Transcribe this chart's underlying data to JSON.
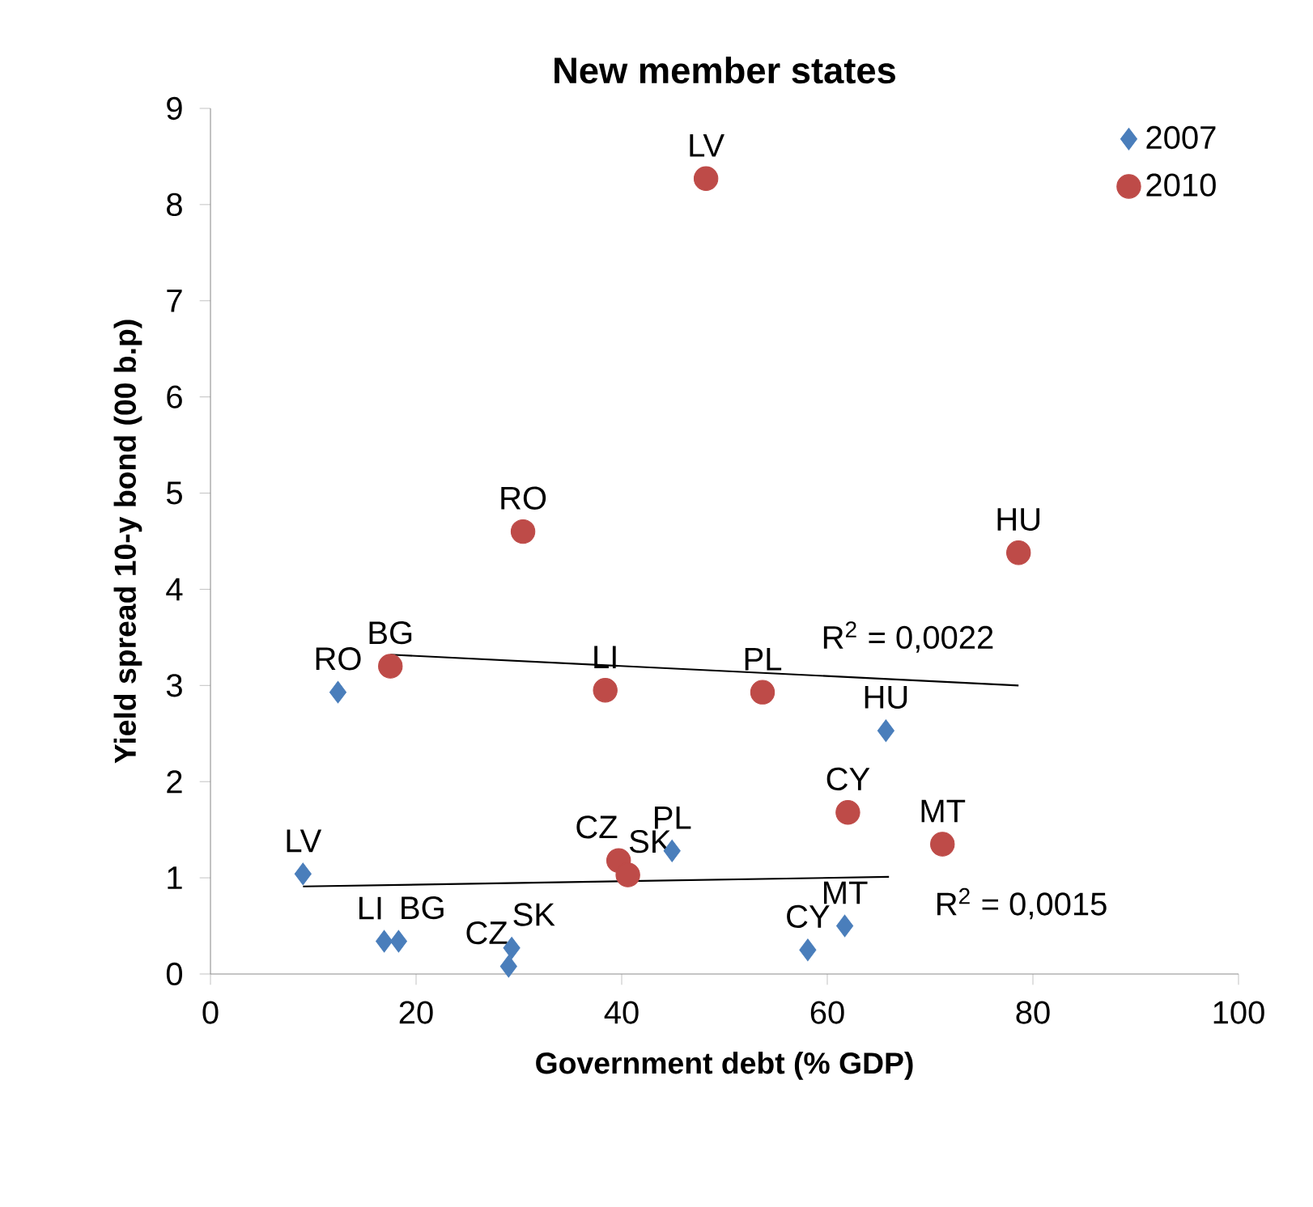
{
  "chart_data": {
    "type": "scatter",
    "title": "New member states",
    "xlabel": "Government debt (% GDP)",
    "ylabel": "Yield spread 10-y bond (00 b.p)",
    "xlim": [
      0,
      100
    ],
    "xticks": [
      0,
      20,
      40,
      60,
      80,
      100
    ],
    "ylim": [
      0,
      9
    ],
    "yticks": [
      0,
      1,
      2,
      3,
      4,
      5,
      6,
      7,
      8,
      9
    ],
    "grid": false,
    "legend": "top right",
    "series": [
      {
        "name": "2007",
        "marker": "diamond",
        "color": "#4a7ebb",
        "x": [
          9.0,
          12.4,
          16.9,
          18.3,
          29.3,
          29.0,
          44.9,
          58.1,
          61.7,
          65.7
        ],
        "values": [
          1.04,
          2.93,
          0.34,
          0.34,
          0.27,
          0.08,
          1.28,
          0.25,
          0.5,
          2.53
        ]
      },
      {
        "name": "2010",
        "marker": "circle",
        "color": "#be4b48",
        "x": [
          48.2,
          30.4,
          17.5,
          38.4,
          53.7,
          78.6,
          62.0,
          71.2,
          39.7,
          40.6
        ],
        "values": [
          8.27,
          4.6,
          3.2,
          2.95,
          2.93,
          4.38,
          1.68,
          1.35,
          1.18,
          1.03
        ]
      },
      {
        "type": "line",
        "color": "#000000",
        "x": [
          9.0,
          66.0
        ],
        "values": [
          0.91,
          1.01
        ]
      },
      {
        "type": "line",
        "color": "#000000",
        "x": [
          17.5,
          78.6
        ],
        "values": [
          3.32,
          3.0
        ]
      }
    ],
    "annotations": [
      {
        "text": "LV",
        "x": 9.0,
        "y": 1.04
      },
      {
        "text": "RO",
        "x": 12.4,
        "y": 2.93
      },
      {
        "text": "LI",
        "x": 16.9,
        "y": 0.34
      },
      {
        "text": "BG",
        "x": 18.3,
        "y": 0.34
      },
      {
        "text": "SK",
        "x": 29.3,
        "y": 0.27
      },
      {
        "text": "CZ",
        "x": 29.0,
        "y": 0.08
      },
      {
        "text": "PL",
        "x": 44.9,
        "y": 1.28
      },
      {
        "text": "CY",
        "x": 58.1,
        "y": 0.25
      },
      {
        "text": "MT",
        "x": 61.7,
        "y": 0.5
      },
      {
        "text": "HU",
        "x": 65.7,
        "y": 2.53
      },
      {
        "text": "LV",
        "x": 48.2,
        "y": 8.27
      },
      {
        "text": "RO",
        "x": 30.4,
        "y": 4.6
      },
      {
        "text": "BG",
        "x": 17.5,
        "y": 3.2
      },
      {
        "text": "LI",
        "x": 38.4,
        "y": 2.95
      },
      {
        "text": "PL",
        "x": 53.7,
        "y": 2.93
      },
      {
        "text": "HU",
        "x": 78.6,
        "y": 4.38
      },
      {
        "text": "CY",
        "x": 62.0,
        "y": 1.68
      },
      {
        "text": "MT",
        "x": 71.2,
        "y": 1.35
      },
      {
        "text": "CZ",
        "x": 39.7,
        "y": 1.18
      },
      {
        "text": "SK",
        "x": 40.6,
        "y": 1.03
      },
      "R$^{2}$ = 0,0015",
      "R$^{2}$ = 0,0022"
    ]
  }
}
